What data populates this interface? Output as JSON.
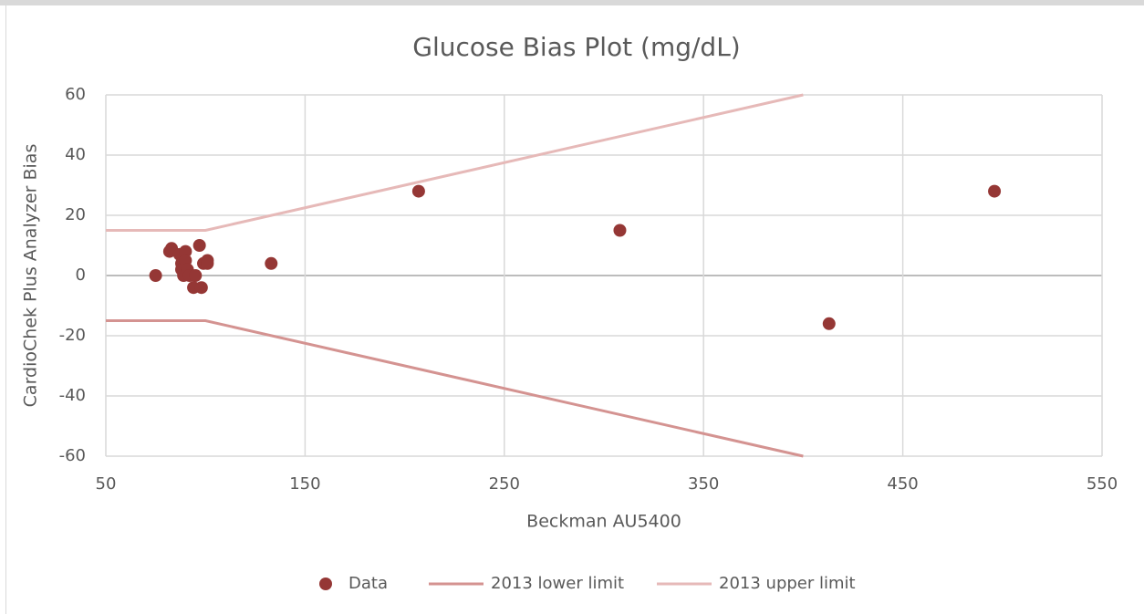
{
  "chart_data": {
    "type": "scatter",
    "title": "Glucose Bias Plot (mg/dL)",
    "xlabel": "Beckman AU5400",
    "ylabel": "CardioChek Plus Analyzer Bias",
    "xlim": [
      50,
      550
    ],
    "xticks": [
      50,
      150,
      250,
      350,
      450,
      550
    ],
    "ylim": [
      -60,
      60
    ],
    "yticks": [
      -60,
      -40,
      -20,
      0,
      20,
      40,
      60
    ],
    "grid": true,
    "legend": "bottom",
    "series": [
      {
        "name": "Data",
        "color": "#953735",
        "mode": "markers",
        "x": [
          75,
          82,
          83,
          87,
          88,
          88,
          89,
          90,
          90,
          91,
          92,
          94,
          95,
          97,
          98,
          99,
          101,
          101,
          133,
          207,
          308,
          413,
          496
        ],
        "values": [
          0,
          8,
          9,
          7,
          4,
          2,
          0,
          8,
          5,
          2,
          0,
          -4,
          0,
          10,
          -4,
          4,
          5,
          4,
          4,
          28,
          15,
          -16,
          28
        ]
      },
      {
        "name": "2013 lower limit",
        "color": "#d49391",
        "mode": "lines",
        "x": [
          50,
          100,
          400
        ],
        "values": [
          -15,
          -15,
          -60
        ]
      },
      {
        "name": "2013 upper limit",
        "color": "#e6b9b8",
        "mode": "lines",
        "x": [
          50,
          100,
          400
        ],
        "values": [
          15,
          15,
          60
        ]
      }
    ]
  }
}
